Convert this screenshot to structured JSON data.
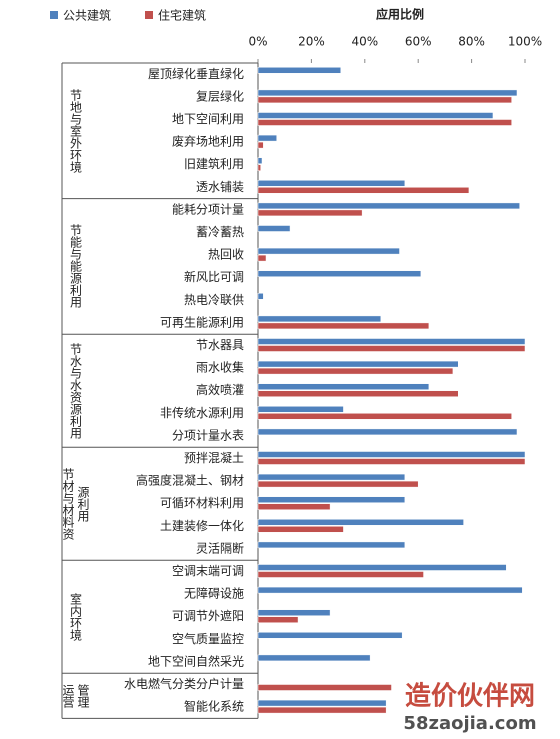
{
  "chart_data": {
    "type": "bar",
    "orientation": "horizontal",
    "title": "应用比例",
    "groups": [
      {
        "name": "节地与室外环境",
        "count": 6
      },
      {
        "name": "节能与能源利用",
        "count": 6
      },
      {
        "name": "节水与水资源利用",
        "count": 5
      },
      {
        "name": "节材与材料资源利用",
        "count": 5
      },
      {
        "name": "室内环境",
        "count": 5
      },
      {
        "name": "运营管理",
        "count": 2
      }
    ],
    "categories": [
      "屋顶绿化垂直绿化",
      "复层绿化",
      "地下空间利用",
      "废弃场地利用",
      "旧建筑利用",
      "透水铺装",
      "能耗分项计量",
      "蓄冷蓄热",
      "热回收",
      "新风比可调",
      "热电冷联供",
      "可再生能源利用",
      "节水器具",
      "雨水收集",
      "高效喷灌",
      "非传统水源利用",
      "分项计量水表",
      "预拌混凝土",
      "高强度混凝土、钢材",
      "可循环材料利用",
      "土建装修一体化",
      "灵活隔断",
      "空调末端可调",
      "无障碍设施",
      "可调节外遮阳",
      "空气质量监控",
      "地下空间自然采光",
      "水电燃气分类分户计量",
      "智能化系统"
    ],
    "series": [
      {
        "name": "公共建筑",
        "color": "#4f81bd",
        "values": [
          31,
          97,
          88,
          7,
          1.5,
          55,
          98,
          12,
          53,
          61,
          2,
          46,
          100,
          75,
          64,
          32,
          97,
          100,
          55,
          55,
          77,
          55,
          93,
          99,
          27,
          54,
          42,
          0,
          48
        ]
      },
      {
        "name": "住宅建筑",
        "color": "#c0504d",
        "values": [
          0,
          95,
          95,
          2,
          1,
          79,
          39,
          0,
          3,
          0,
          0,
          64,
          100,
          73,
          75,
          95,
          0,
          100,
          60,
          27,
          32,
          0,
          62,
          0,
          15,
          0,
          0,
          50,
          48
        ]
      }
    ],
    "xlim": [
      0,
      100
    ],
    "xticks": [
      {
        "value": 0,
        "label": "0%"
      },
      {
        "value": 20,
        "label": "20%"
      },
      {
        "value": 40,
        "label": "40%"
      },
      {
        "value": 60,
        "label": "60%"
      },
      {
        "value": 80,
        "label": "80%"
      },
      {
        "value": 100,
        "label": "100%"
      }
    ],
    "legend": "top-left",
    "watermark": {
      "name": "造价伙伴网",
      "url": "58zaojia.com"
    }
  }
}
